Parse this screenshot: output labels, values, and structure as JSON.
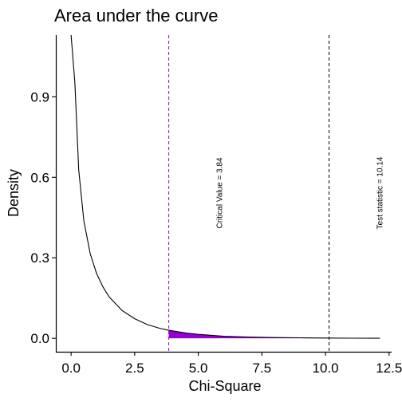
{
  "chart_data": {
    "type": "line",
    "title": "Area under the curve",
    "xlabel": "Chi-Square",
    "ylabel": "Density",
    "xlim": [
      -0.6,
      12.6
    ],
    "ylim": [
      -0.05,
      1.13
    ],
    "x_ticks": [
      0,
      2.5,
      5,
      7.5,
      10,
      12.5
    ],
    "x_tick_labels": [
      "0.0",
      "2.5",
      "5.0",
      "7.5",
      "10.0",
      "12.5"
    ],
    "y_ticks": [
      0,
      0.3,
      0.6,
      0.9
    ],
    "y_tick_labels": [
      "0.0",
      "0.3",
      "0.6",
      "0.9"
    ],
    "grid": false,
    "distribution": "chi-square density, df = 1",
    "series": [
      {
        "color": "#000000",
        "x": [
          0.0,
          0.15,
          0.3,
          0.5,
          0.75,
          1.0,
          1.25,
          1.5,
          2.0,
          2.5,
          3.0,
          3.5,
          3.84,
          4.5,
          5.0,
          6.0,
          7.0,
          8.0,
          9.0,
          10.0,
          11.0,
          12.14
        ],
        "y": [
          1.13,
          0.95,
          0.627,
          0.439,
          0.316,
          0.242,
          0.192,
          0.154,
          0.104,
          0.073,
          0.051,
          0.037,
          0.03,
          0.02,
          0.015,
          0.008,
          0.005,
          0.003,
          0.002,
          0.001,
          0.0005,
          0.0003
        ]
      }
    ],
    "shaded_region": {
      "from": 3.84,
      "to": 12.14,
      "color": "#9400D3"
    },
    "vlines": [
      {
        "x": 3.84,
        "color": "#9400D3",
        "style": "dashed",
        "label": "Critical Value = 3.84"
      },
      {
        "x": 10.14,
        "color": "#000000",
        "style": "dashed",
        "label": "Test statistic = 10.14"
      }
    ]
  }
}
